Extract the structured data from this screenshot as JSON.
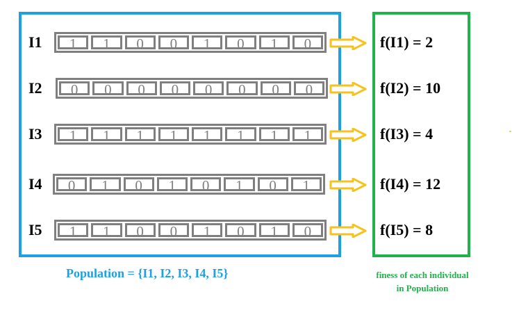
{
  "population_caption": "Population = {I1, I2, I3, I4, I5}",
  "fitness_caption_line1": "finess of each individual",
  "fitness_caption_line2": "in Population",
  "colors": {
    "population_box": "#1da1e3",
    "fitness_box": "#22b14c",
    "gene_border": "#7f7f7f",
    "arrow": "#f6c21c"
  },
  "individuals": [
    {
      "label": "I1",
      "genes": [
        "1",
        "1",
        "0",
        "0",
        "1",
        "0",
        "1",
        "0"
      ],
      "fitness": "f(I1) = 2"
    },
    {
      "label": "I2",
      "genes": [
        "0",
        "0",
        "0",
        "0",
        "0",
        "0",
        "0",
        "0"
      ],
      "fitness": "f(I2) = 10"
    },
    {
      "label": "I3",
      "genes": [
        "1",
        "1",
        "1",
        "1",
        "1",
        "1",
        "1",
        "1"
      ],
      "fitness": "f(I3) = 4"
    },
    {
      "label": "I4",
      "genes": [
        "0",
        "1",
        "0",
        "1",
        "0",
        "1",
        "0",
        "1"
      ],
      "fitness": "f(I4) = 12"
    },
    {
      "label": "I5",
      "genes": [
        "1",
        "1",
        "0",
        "0",
        "1",
        "0",
        "1",
        "0"
      ],
      "fitness": "f(I5) = 8"
    }
  ]
}
